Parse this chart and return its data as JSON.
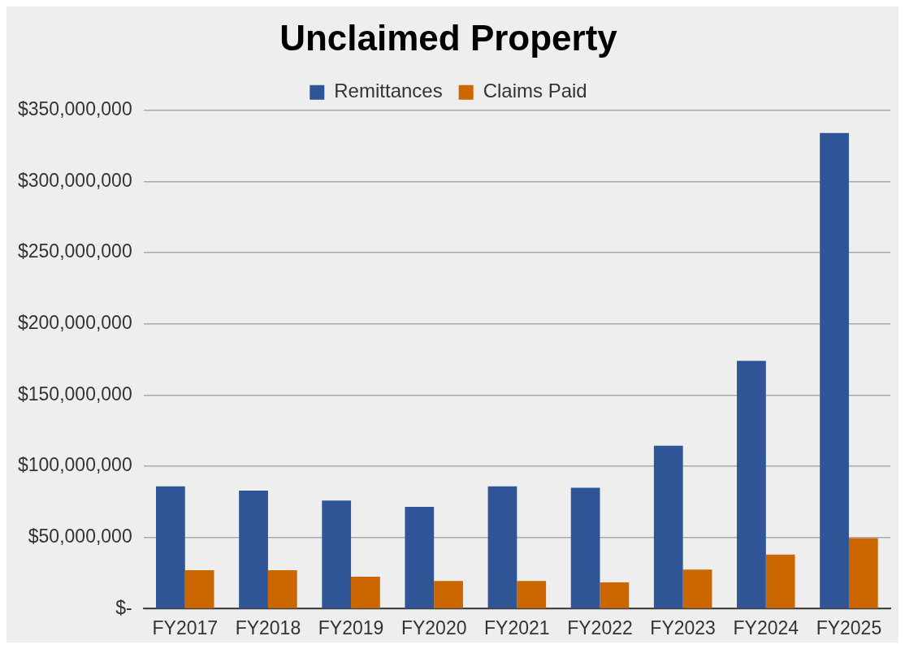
{
  "chart_data": {
    "type": "bar",
    "title": "Unclaimed Property",
    "categories": [
      "FY2017",
      "FY2018",
      "FY2019",
      "FY2020",
      "FY2021",
      "FY2022",
      "FY2023",
      "FY2024",
      "FY2025"
    ],
    "series": [
      {
        "name": "Remittances",
        "color": "#2f5597",
        "values": [
          86000000,
          83000000,
          76000000,
          71500000,
          86000000,
          85000000,
          114500000,
          174000000,
          334000000
        ]
      },
      {
        "name": "Claims Paid",
        "color": "#cc6600",
        "values": [
          27000000,
          27000000,
          22500000,
          19500000,
          19500000,
          18500000,
          27500000,
          38000000,
          49500000
        ]
      }
    ],
    "ylim": [
      0,
      350000000
    ],
    "yticks": [
      {
        "value": 0,
        "label": "$-"
      },
      {
        "value": 50000000,
        "label": "$50,000,000"
      },
      {
        "value": 100000000,
        "label": "$100,000,000"
      },
      {
        "value": 150000000,
        "label": "$150,000,000"
      },
      {
        "value": 200000000,
        "label": "$200,000,000"
      },
      {
        "value": 250000000,
        "label": "$250,000,000"
      },
      {
        "value": 300000000,
        "label": "$300,000,000"
      },
      {
        "value": 350000000,
        "label": "$350,000,000"
      }
    ],
    "grid": "y",
    "legend": "top"
  }
}
